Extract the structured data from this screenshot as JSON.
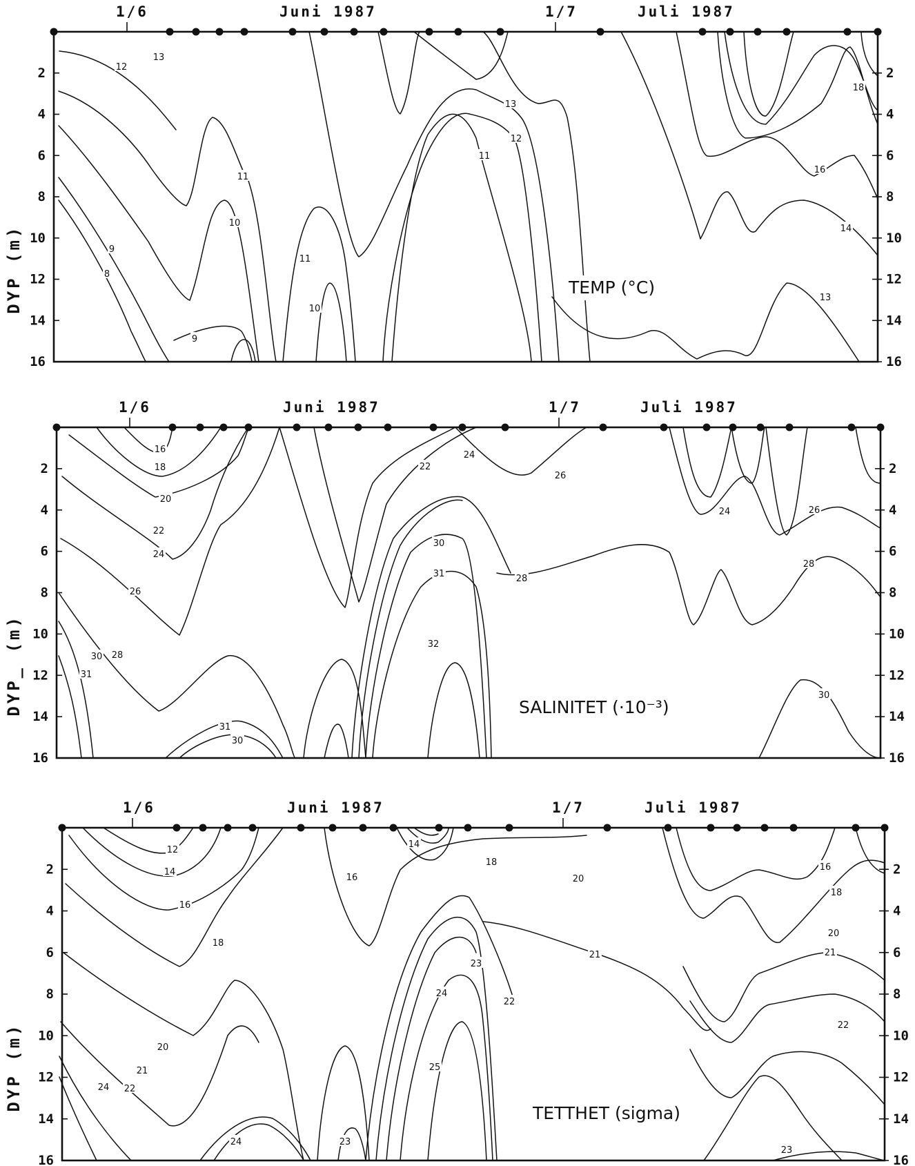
{
  "chart_data": [
    {
      "type": "contour",
      "title": "TEMP (°C)",
      "ylabel": "DYP (m)",
      "xlabels": [
        "1/6",
        "Juni 1987",
        "1/7",
        "Juli 1987"
      ],
      "yticks": [
        2,
        4,
        6,
        8,
        10,
        12,
        14,
        16
      ],
      "ylim": [
        0,
        16
      ],
      "contour_levels": [
        8,
        9,
        10,
        11,
        12,
        13,
        14,
        16,
        18
      ]
    },
    {
      "type": "contour",
      "title": "SALINITET (·10⁻³)",
      "ylabel": "DYP_ (m)",
      "xlabels": [
        "1/6",
        "Juni 1987",
        "1/7",
        "Juli 1987"
      ],
      "yticks": [
        2,
        4,
        6,
        8,
        10,
        12,
        14,
        16
      ],
      "ylim": [
        0,
        16
      ],
      "contour_levels": [
        16,
        18,
        20,
        22,
        24,
        26,
        28,
        30,
        31,
        32
      ]
    },
    {
      "type": "contour",
      "title": "TETTHET (sigma)",
      "ylabel": "DYP (m)",
      "xlabels": [
        "1/6",
        "Juni 1987",
        "1/7",
        "Juli 1987"
      ],
      "yticks": [
        2,
        4,
        6,
        8,
        10,
        12,
        14,
        16
      ],
      "ylim": [
        0,
        16
      ],
      "contour_levels": [
        12,
        14,
        16,
        18,
        20,
        21,
        22,
        23,
        24,
        25
      ]
    }
  ]
}
